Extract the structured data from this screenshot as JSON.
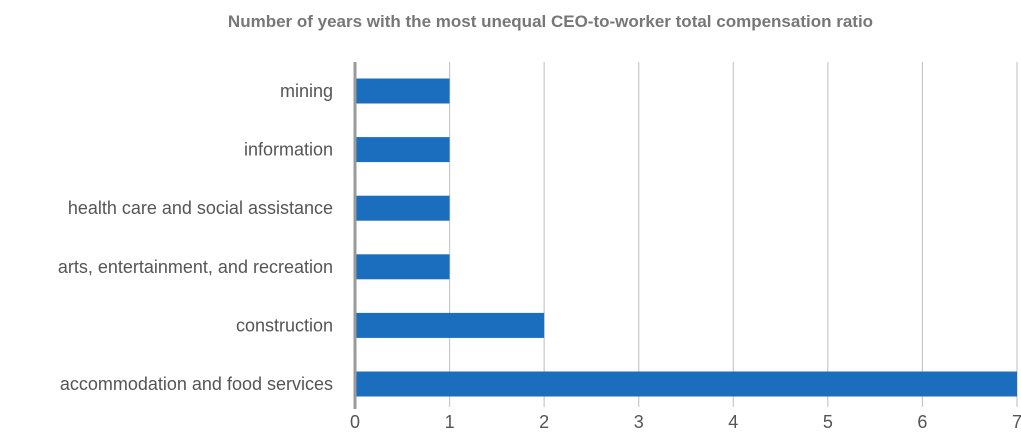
{
  "chart_data": {
    "type": "bar",
    "orientation": "horizontal",
    "title": "Number of years with the most unequal CEO-to-worker total compensation ratio",
    "xlabel": "",
    "ylabel": "",
    "categories": [
      "mining",
      "information",
      "health care and social assistance",
      "arts, entertainment, and recreation",
      "construction",
      "accommodation and food services"
    ],
    "values": [
      1,
      1,
      1,
      1,
      2,
      7
    ],
    "xlim": [
      0,
      7
    ],
    "x_ticks": [
      "0",
      "1",
      "2",
      "3",
      "4",
      "5",
      "6",
      "7"
    ],
    "grid": "vertical",
    "legend": "none",
    "bar_color": "#1a6ebd",
    "grid_color": "#c8c8c8",
    "axis_color": "#9a9a9a"
  }
}
